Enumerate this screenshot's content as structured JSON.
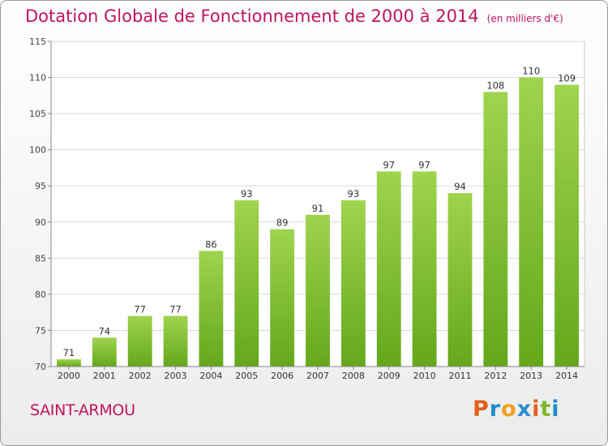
{
  "chart_data": {
    "type": "bar",
    "title": "Dotation Globale de Fonctionnement de 2000 à 2014",
    "subtitle": "(en milliers d'€)",
    "categories": [
      "2000",
      "2001",
      "2002",
      "2003",
      "2004",
      "2005",
      "2006",
      "2007",
      "2008",
      "2009",
      "2010",
      "2011",
      "2012",
      "2013",
      "2014"
    ],
    "values": [
      71,
      74,
      77,
      77,
      86,
      93,
      89,
      91,
      93,
      97,
      97,
      94,
      108,
      110,
      109
    ],
    "ylim": [
      70,
      115
    ],
    "yticks": [
      70,
      75,
      80,
      85,
      90,
      95,
      100,
      105,
      110,
      115
    ],
    "grid": true,
    "bar_color": "#7cbd2c"
  },
  "footer": {
    "place": "SAINT-ARMOU",
    "logo": "Proxiti"
  }
}
